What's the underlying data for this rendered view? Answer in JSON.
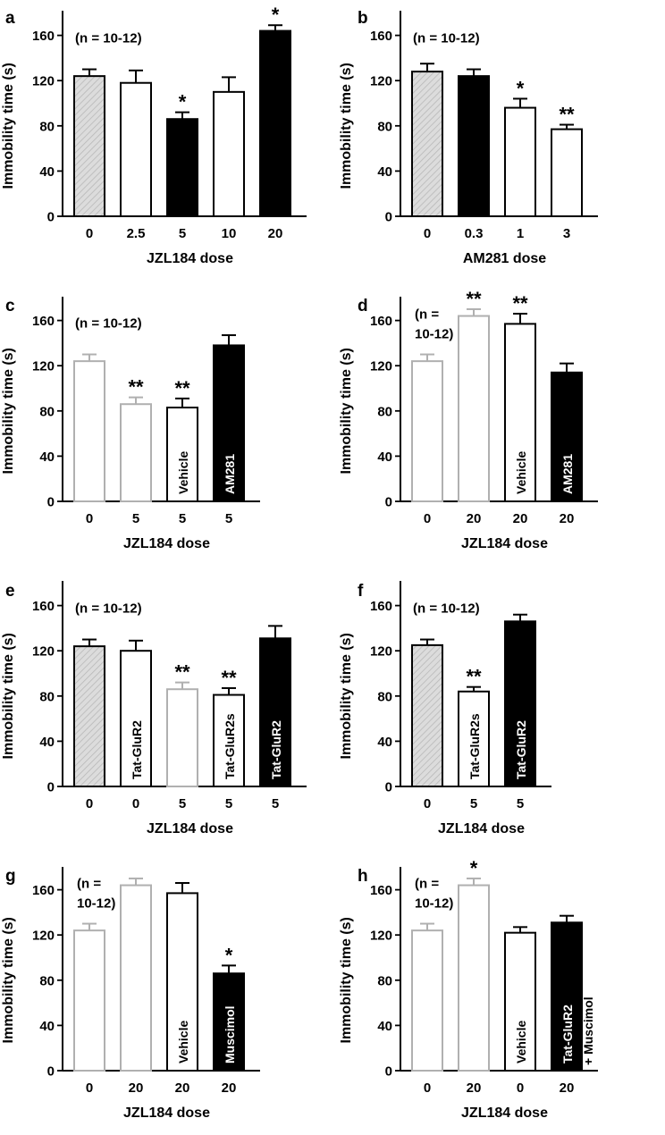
{
  "chart_data": [
    {
      "panel": "a",
      "type": "bar",
      "annotation": "(n = 10-12)",
      "ylabel": "Immobility time (s)",
      "xlabel": "JZL184 dose",
      "ylim": [
        0,
        160
      ],
      "yticks": [
        "0",
        "40",
        "80",
        "120",
        "160"
      ],
      "categories": [
        "0",
        "2.5",
        "5",
        "10",
        "20"
      ],
      "values": [
        124,
        118,
        86,
        110,
        164
      ],
      "errors": [
        6,
        11,
        6,
        13,
        5
      ],
      "significance": [
        "",
        "",
        "*",
        "",
        "*"
      ],
      "bar_labels": [
        "",
        "",
        "",
        "",
        ""
      ],
      "bar_styles": [
        "hatched",
        "open",
        "black",
        "open",
        "black"
      ]
    },
    {
      "panel": "b",
      "type": "bar",
      "annotation": "(n = 10-12)",
      "ylabel": "Immobility time (s)",
      "xlabel": "AM281 dose",
      "ylim": [
        0,
        160
      ],
      "yticks": [
        "0",
        "40",
        "80",
        "120",
        "160"
      ],
      "categories": [
        "0",
        "0.3",
        "1",
        "3"
      ],
      "values": [
        128,
        124,
        96,
        77
      ],
      "errors": [
        7,
        6,
        8,
        4
      ],
      "significance": [
        "",
        "",
        "*",
        "**"
      ],
      "bar_labels": [
        "",
        "",
        "",
        ""
      ],
      "bar_styles": [
        "hatched",
        "black",
        "open",
        "open"
      ]
    },
    {
      "panel": "c",
      "type": "bar",
      "annotation": "(n = 10-12)",
      "ylabel": "Immobility time (s)",
      "xlabel": "JZL184 dose",
      "ylim": [
        0,
        160
      ],
      "yticks": [
        "0",
        "40",
        "80",
        "120",
        "160"
      ],
      "categories": [
        "0",
        "5",
        "5",
        "5"
      ],
      "values": [
        124,
        86,
        83,
        138
      ],
      "errors": [
        6,
        6,
        8,
        9
      ],
      "significance": [
        "",
        "**",
        "**",
        ""
      ],
      "bar_labels": [
        "",
        "",
        "Vehicle",
        "AM281"
      ],
      "bar_styles": [
        "grey",
        "grey",
        "open",
        "black"
      ]
    },
    {
      "panel": "d",
      "type": "bar",
      "annotation_lines": [
        "(n =",
        "10-12)"
      ],
      "ylabel": "Immobility time (s)",
      "xlabel": "JZL184 dose",
      "ylim": [
        0,
        160
      ],
      "yticks": [
        "0",
        "40",
        "80",
        "120",
        "160"
      ],
      "categories": [
        "0",
        "20",
        "20",
        "20"
      ],
      "values": [
        124,
        164,
        157,
        114
      ],
      "errors": [
        6,
        6,
        9,
        8
      ],
      "significance": [
        "",
        "**",
        "**",
        ""
      ],
      "bar_labels": [
        "",
        "",
        "Vehicle",
        "AM281"
      ],
      "bar_styles": [
        "grey",
        "grey",
        "open",
        "black"
      ]
    },
    {
      "panel": "e",
      "type": "bar",
      "annotation": "(n = 10-12)",
      "ylabel": "Immobility time (s)",
      "xlabel": "JZL184 dose",
      "ylim": [
        0,
        160
      ],
      "yticks": [
        "0",
        "40",
        "80",
        "120",
        "160"
      ],
      "categories": [
        "0",
        "0",
        "5",
        "5",
        "5"
      ],
      "values": [
        124,
        120,
        86,
        81,
        131
      ],
      "errors": [
        6,
        9,
        6,
        6,
        11
      ],
      "significance": [
        "",
        "",
        "**",
        "**",
        ""
      ],
      "bar_labels": [
        "",
        "Tat-GluR2",
        "",
        "Tat-GluR2s",
        "Tat-GluR2"
      ],
      "bar_styles": [
        "hatched",
        "open",
        "grey",
        "open",
        "black"
      ]
    },
    {
      "panel": "f",
      "type": "bar",
      "annotation": "(n = 10-12)",
      "ylabel": "Immobility time (s)",
      "xlabel": "JZL184 dose",
      "ylim": [
        0,
        160
      ],
      "yticks": [
        "0",
        "40",
        "80",
        "120",
        "160"
      ],
      "categories": [
        "0",
        "5",
        "5"
      ],
      "values": [
        125,
        84,
        146
      ],
      "errors": [
        5,
        4,
        6
      ],
      "significance": [
        "",
        "**",
        ""
      ],
      "bar_labels": [
        "",
        "Tat-GluR2s",
        "Tat-GluR2"
      ],
      "bar_styles": [
        "hatched",
        "open",
        "black"
      ]
    },
    {
      "panel": "g",
      "type": "bar",
      "annotation_lines": [
        "(n =",
        "10-12)"
      ],
      "ylabel": "Immobility time (s)",
      "xlabel": "JZL184 dose",
      "ylim": [
        0,
        160
      ],
      "yticks": [
        "0",
        "40",
        "80",
        "120",
        "160"
      ],
      "categories": [
        "0",
        "20",
        "20",
        "20"
      ],
      "values": [
        124,
        164,
        157,
        86
      ],
      "errors": [
        6,
        6,
        9,
        7
      ],
      "significance": [
        "",
        "",
        "",
        "*"
      ],
      "bar_labels": [
        "",
        "",
        "Vehicle",
        "Muscimol"
      ],
      "bar_styles": [
        "grey",
        "grey",
        "open",
        "black"
      ]
    },
    {
      "panel": "h",
      "type": "bar",
      "annotation_lines": [
        "(n =",
        "10-12)"
      ],
      "ylabel": "Immobility time (s)",
      "xlabel": "JZL184 dose",
      "ylim": [
        0,
        160
      ],
      "yticks": [
        "0",
        "40",
        "80",
        "120",
        "160"
      ],
      "categories": [
        "0",
        "20",
        "0",
        "20"
      ],
      "values": [
        124,
        164,
        122,
        131
      ],
      "errors": [
        6,
        6,
        5,
        6
      ],
      "significance": [
        "",
        "*",
        "",
        ""
      ],
      "bar_labels": [
        "",
        "",
        "Vehicle",
        "Tat-GluR2"
      ],
      "bar_outer_label": "+ Muscimol",
      "bar_styles": [
        "grey",
        "grey",
        "open",
        "black"
      ]
    }
  ]
}
